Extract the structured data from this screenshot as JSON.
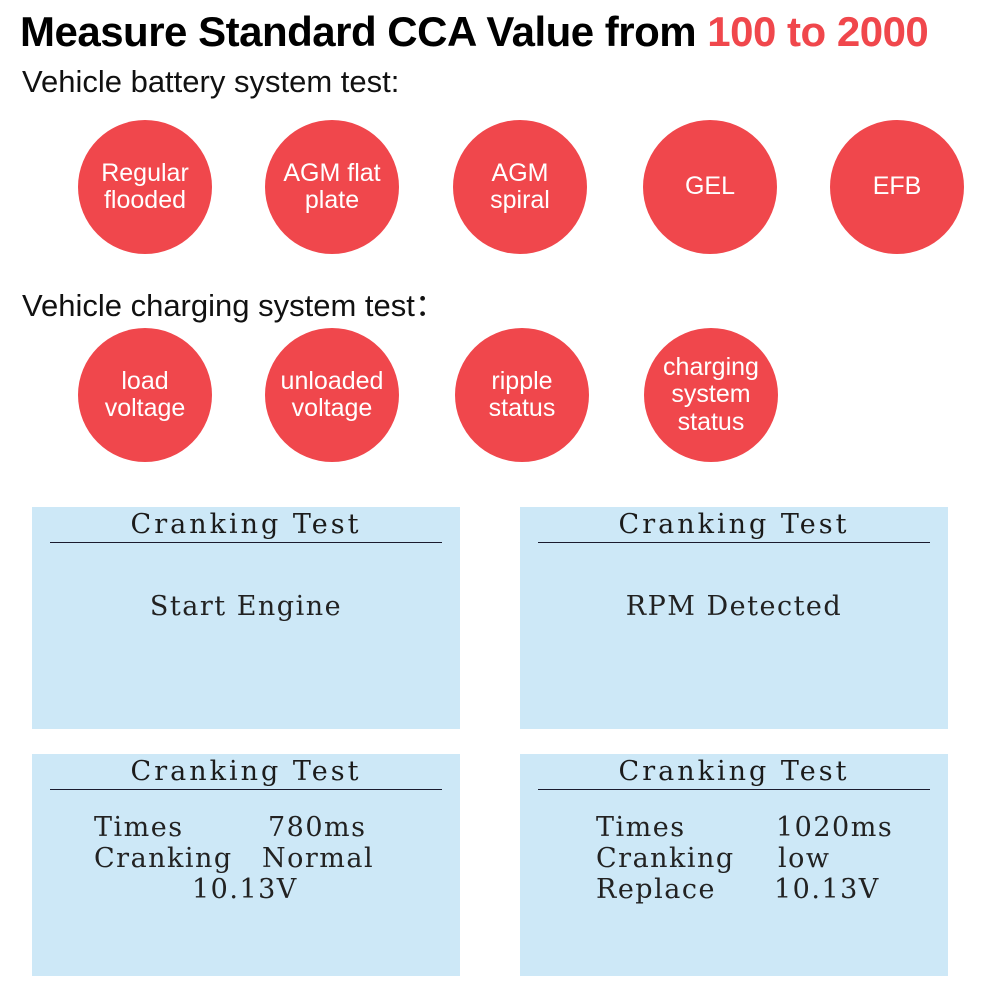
{
  "headline": {
    "prefix": "Measure Standard CCA Value from ",
    "highlight": "100 to 2000",
    "highlight_color": "#f0474c"
  },
  "battery_section": {
    "label": "Vehicle battery system test:",
    "items": [
      "Regular\nflooded",
      "AGM flat\nplate",
      "AGM\nspiral",
      "GEL",
      "EFB"
    ]
  },
  "charging_section": {
    "label": "Vehicle charging system test：",
    "items": [
      "load\nvoltage",
      "unloaded\nvoltage",
      "ripple\nstatus",
      "charging\nsystem\nstatus"
    ]
  },
  "screens": [
    {
      "title": "Cranking Test",
      "message": "Start Engine"
    },
    {
      "title": "Cranking Test",
      "message": "RPM Detected"
    },
    {
      "title": "Cranking Test",
      "times_label": "Times",
      "times_value": "780ms",
      "cranking_label": "Cranking",
      "cranking_value": "Normal",
      "voltage": "10.13V"
    },
    {
      "title": "Cranking Test",
      "times_label": "Times",
      "times_value": "1020ms",
      "cranking_label": "Cranking",
      "cranking_value": "low",
      "replace_label": "Replace",
      "voltage": "10.13V"
    }
  ]
}
